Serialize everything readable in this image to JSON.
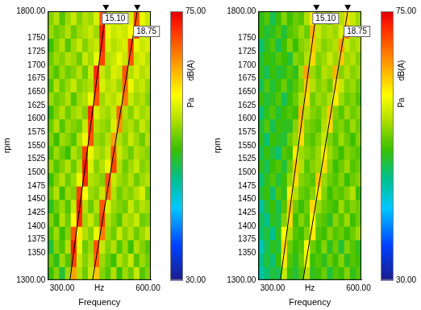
{
  "chart_data": [
    {
      "type": "heatmap",
      "x_label": "Frequency",
      "y_label": "rpm",
      "x_unit": "Hz",
      "grid": false,
      "xlim": [
        250,
        610
      ],
      "xticks": [
        {
          "value": 300,
          "label": "300.00"
        },
        {
          "value": 600,
          "label": "600.00"
        }
      ],
      "ylim": [
        1300,
        1800
      ],
      "yticks": [
        {
          "value": 1300,
          "label": "1300.00"
        },
        1350,
        1375,
        1400,
        1425,
        1450,
        1475,
        1500,
        1525,
        1550,
        1575,
        1600,
        1625,
        1650,
        1675,
        1700,
        1725,
        1750,
        {
          "value": 1800,
          "label": "1800.00"
        }
      ],
      "x_edges": [
        250,
        270,
        290,
        310,
        330,
        350,
        370,
        390,
        410,
        430,
        450,
        470,
        490,
        510,
        530,
        550,
        570,
        590,
        610
      ],
      "y_edges": [
        1300,
        1325,
        1350,
        1375,
        1400,
        1425,
        1450,
        1475,
        1500,
        1525,
        1550,
        1575,
        1600,
        1625,
        1650,
        1675,
        1700,
        1725,
        1750,
        1775,
        1800
      ],
      "cells": [
        [
          52,
          55,
          50,
          56,
          66,
          57,
          54,
          58,
          64,
          55,
          53,
          57,
          52,
          56,
          54,
          58,
          53,
          55
        ],
        [
          54,
          51,
          56,
          53,
          71,
          58,
          55,
          57,
          69,
          56,
          54,
          52,
          57,
          55,
          58,
          53,
          56,
          54
        ],
        [
          50,
          55,
          53,
          57,
          73,
          60,
          54,
          56,
          70,
          58,
          55,
          57,
          53,
          56,
          52,
          57,
          55,
          53
        ],
        [
          53,
          56,
          52,
          55,
          70,
          62,
          57,
          55,
          60,
          68,
          56,
          54,
          58,
          55,
          57,
          54,
          56,
          58
        ],
        [
          55,
          52,
          57,
          54,
          61,
          72,
          56,
          58,
          55,
          71,
          57,
          55,
          53,
          57,
          56,
          58,
          54,
          55
        ],
        [
          51,
          54,
          56,
          53,
          58,
          73,
          57,
          54,
          57,
          70,
          59,
          56,
          55,
          54,
          58,
          55,
          57,
          56
        ],
        [
          54,
          57,
          52,
          56,
          55,
          71,
          61,
          56,
          55,
          58,
          69,
          57,
          54,
          56,
          55,
          57,
          59,
          54
        ],
        [
          52,
          55,
          57,
          54,
          56,
          60,
          72,
          57,
          56,
          55,
          70,
          58,
          56,
          55,
          57,
          54,
          56,
          57
        ],
        [
          56,
          53,
          55,
          57,
          54,
          57,
          73,
          59,
          55,
          57,
          60,
          71,
          57,
          54,
          56,
          58,
          55,
          56
        ],
        [
          53,
          56,
          54,
          52,
          57,
          55,
          71,
          60,
          57,
          56,
          58,
          70,
          58,
          56,
          54,
          57,
          56,
          55
        ],
        [
          55,
          52,
          56,
          55,
          53,
          57,
          60,
          70,
          56,
          55,
          57,
          66,
          57,
          55,
          58,
          56,
          54,
          57
        ],
        [
          54,
          57,
          53,
          56,
          55,
          54,
          58,
          71,
          57,
          56,
          55,
          59,
          67,
          56,
          57,
          55,
          58,
          56
        ],
        [
          52,
          55,
          57,
          54,
          56,
          57,
          55,
          72,
          59,
          57,
          56,
          58,
          69,
          57,
          55,
          58,
          56,
          57
        ],
        [
          56,
          54,
          55,
          57,
          53,
          56,
          57,
          60,
          70,
          56,
          58,
          57,
          59,
          68,
          58,
          56,
          57,
          55
        ],
        [
          53,
          57,
          54,
          56,
          58,
          55,
          56,
          57,
          71,
          59,
          57,
          58,
          56,
          69,
          60,
          57,
          58,
          56
        ],
        [
          55,
          53,
          56,
          54,
          55,
          57,
          54,
          58,
          72,
          58,
          56,
          59,
          58,
          70,
          57,
          59,
          57,
          58
        ],
        [
          54,
          56,
          55,
          57,
          56,
          54,
          58,
          56,
          60,
          71,
          57,
          58,
          60,
          58,
          70,
          58,
          59,
          57
        ],
        [
          52,
          55,
          57,
          53,
          56,
          58,
          55,
          57,
          58,
          72,
          59,
          57,
          58,
          59,
          71,
          60,
          58,
          59
        ],
        [
          56,
          54,
          55,
          57,
          54,
          56,
          57,
          58,
          56,
          73,
          60,
          58,
          59,
          58,
          61,
          71,
          59,
          58
        ],
        [
          55,
          57,
          53,
          56,
          58,
          55,
          57,
          56,
          59,
          70,
          58,
          59,
          57,
          60,
          59,
          70,
          60,
          58
        ]
      ],
      "colorbar": {
        "range": [
          30,
          75
        ],
        "ticks": [
          {
            "value": 75,
            "label": "75.00"
          },
          {
            "value": 30,
            "label": "30.00"
          }
        ],
        "labels": [
          "dB(A)",
          "Pa"
        ]
      },
      "orders": [
        {
          "label": "15.10",
          "color": "#000000",
          "x": [
            327.2,
            453.0
          ],
          "y": [
            1300,
            1800
          ]
        },
        {
          "label": "18.75",
          "color": "#000000",
          "x": [
            406.3,
            562.5
          ],
          "y": [
            1300,
            1800
          ]
        }
      ]
    },
    {
      "type": "heatmap",
      "x_label": "Frequency",
      "y_label": "rpm",
      "x_unit": "Hz",
      "grid": false,
      "xlim": [
        250,
        610
      ],
      "xticks": [
        {
          "value": 300,
          "label": "300.00"
        },
        {
          "value": 600,
          "label": "600.00"
        }
      ],
      "ylim": [
        1300,
        1800
      ],
      "yticks": [
        {
          "value": 1300,
          "label": "1300.00"
        },
        1350,
        1375,
        1400,
        1425,
        1450,
        1475,
        1500,
        1525,
        1550,
        1575,
        1600,
        1625,
        1650,
        1675,
        1700,
        1725,
        1750,
        {
          "value": 1800,
          "label": "1800.00"
        }
      ],
      "x_edges": [
        250,
        270,
        290,
        310,
        330,
        350,
        370,
        390,
        410,
        430,
        450,
        470,
        490,
        510,
        530,
        550,
        570,
        590,
        610
      ],
      "y_edges": [
        1300,
        1325,
        1350,
        1375,
        1400,
        1425,
        1450,
        1475,
        1500,
        1525,
        1550,
        1575,
        1600,
        1625,
        1650,
        1675,
        1700,
        1725,
        1750,
        1775,
        1800
      ],
      "cells": [
        [
          46,
          48,
          50,
          49,
          58,
          52,
          50,
          53,
          57,
          51,
          52,
          54,
          50,
          53,
          52,
          55,
          51,
          53
        ],
        [
          47,
          50,
          48,
          52,
          62,
          53,
          51,
          54,
          60,
          52,
          53,
          51,
          54,
          52,
          55,
          51,
          53,
          52
        ],
        [
          45,
          49,
          51,
          50,
          63,
          54,
          52,
          53,
          61,
          54,
          52,
          55,
          51,
          54,
          50,
          55,
          53,
          51
        ],
        [
          48,
          50,
          47,
          51,
          61,
          57,
          53,
          52,
          55,
          62,
          53,
          52,
          55,
          53,
          54,
          52,
          54,
          56
        ],
        [
          49,
          47,
          51,
          50,
          55,
          63,
          52,
          55,
          53,
          61,
          54,
          53,
          51,
          55,
          53,
          56,
          52,
          54
        ],
        [
          46,
          50,
          52,
          49,
          53,
          64,
          54,
          52,
          54,
          63,
          56,
          54,
          53,
          52,
          56,
          53,
          55,
          54
        ],
        [
          50,
          52,
          48,
          53,
          51,
          62,
          57,
          54,
          53,
          55,
          62,
          55,
          52,
          54,
          53,
          55,
          57,
          52
        ],
        [
          48,
          51,
          53,
          50,
          52,
          56,
          63,
          55,
          54,
          53,
          64,
          56,
          54,
          53,
          55,
          52,
          54,
          55
        ],
        [
          51,
          49,
          52,
          53,
          50,
          54,
          64,
          57,
          53,
          55,
          56,
          63,
          55,
          52,
          54,
          56,
          53,
          54
        ],
        [
          49,
          52,
          50,
          48,
          53,
          52,
          62,
          56,
          55,
          54,
          56,
          62,
          56,
          54,
          52,
          55,
          54,
          53
        ],
        [
          51,
          48,
          52,
          51,
          50,
          54,
          56,
          63,
          54,
          53,
          55,
          58,
          55,
          53,
          56,
          54,
          52,
          55
        ],
        [
          50,
          53,
          49,
          52,
          51,
          51,
          55,
          64,
          55,
          54,
          53,
          57,
          63,
          54,
          55,
          53,
          56,
          54
        ],
        [
          48,
          51,
          53,
          50,
          52,
          53,
          52,
          65,
          57,
          55,
          54,
          56,
          64,
          55,
          53,
          56,
          54,
          55
        ],
        [
          52,
          50,
          51,
          53,
          49,
          52,
          54,
          57,
          63,
          54,
          56,
          55,
          57,
          62,
          56,
          54,
          55,
          53
        ],
        [
          49,
          53,
          50,
          52,
          54,
          51,
          53,
          55,
          64,
          57,
          55,
          56,
          54,
          63,
          58,
          55,
          56,
          54
        ],
        [
          51,
          49,
          52,
          50,
          51,
          53,
          51,
          56,
          66,
          56,
          54,
          57,
          56,
          65,
          55,
          57,
          55,
          56
        ],
        [
          50,
          52,
          51,
          53,
          52,
          50,
          55,
          54,
          57,
          63,
          55,
          56,
          58,
          56,
          64,
          56,
          57,
          55
        ],
        [
          48,
          51,
          53,
          49,
          52,
          55,
          52,
          55,
          56,
          64,
          57,
          55,
          56,
          57,
          66,
          58,
          56,
          57
        ],
        [
          52,
          50,
          51,
          53,
          50,
          53,
          54,
          56,
          54,
          65,
          58,
          56,
          57,
          56,
          59,
          68,
          57,
          56
        ],
        [
          51,
          53,
          49,
          52,
          55,
          52,
          54,
          53,
          57,
          62,
          56,
          57,
          55,
          58,
          57,
          63,
          58,
          56
        ]
      ],
      "colorbar": {
        "range": [
          30,
          75
        ],
        "ticks": [
          {
            "value": 75,
            "label": "75.00"
          },
          {
            "value": 30,
            "label": "30.00"
          }
        ],
        "labels": [
          "dB(A)",
          "Pa"
        ]
      },
      "orders": [
        {
          "label": "15.10",
          "color": "#000000",
          "x": [
            327.2,
            453.0
          ],
          "y": [
            1300,
            1800
          ]
        },
        {
          "label": "18.75",
          "color": "#000000",
          "x": [
            406.3,
            562.5
          ],
          "y": [
            1300,
            1800
          ]
        }
      ]
    }
  ]
}
